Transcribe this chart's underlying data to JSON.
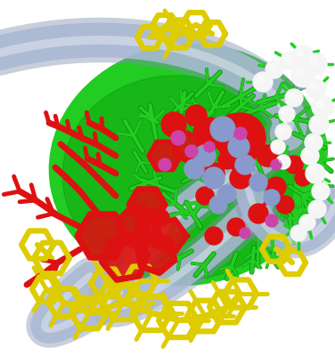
{
  "background_color": "#ffffff",
  "colors": {
    "green": "#22cc22",
    "green_dark": "#008800",
    "red": "#dd1111",
    "red_dark": "#990000",
    "yellow": "#ddcc00",
    "yellow2": "#ccbb00",
    "white_atom": "#f5f5f5",
    "white_atom2": "#e0e0e0",
    "blue_purple": "#8899cc",
    "blue_purple2": "#aabbdd",
    "magenta": "#cc44aa",
    "ribbon": "#aab8d4",
    "ribbon_dark": "#8090b0",
    "orange_red": "#ee4400"
  },
  "figsize": [
    3.76,
    4.0
  ],
  "dpi": 100
}
